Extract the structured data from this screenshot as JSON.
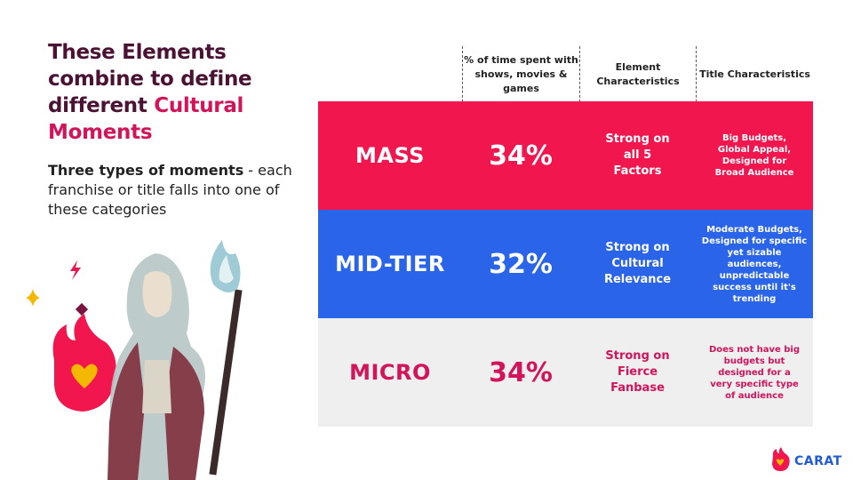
{
  "heading": {
    "line_main": "These Elements combine to define different ",
    "line_accent": "Cultural Moments"
  },
  "subheading": {
    "bold": "Three types of moments",
    "rest": " - each franchise or title falls into one of these categories"
  },
  "table": {
    "headers": [
      "% of time spent with shows, movies & games",
      "Element Characteristics",
      "Title Characteristics"
    ],
    "rows": [
      {
        "name": "MASS",
        "percent": "34%",
        "element": "Strong on all 5 Factors",
        "title": "Big Budgets, Global Appeal, Designed for Broad Audience",
        "color": "#f2164e"
      },
      {
        "name": "MID-TIER",
        "percent": "32%",
        "element": "Strong on Cultural Relevance",
        "title": "Moderate Budgets, Designed for specific yet sizable audiences, unpredictable success until it's trending",
        "color": "#2a64e8"
      },
      {
        "name": "MICRO",
        "percent": "34%",
        "element": "Strong on Fierce Fanbase",
        "title": "Does not have big budgets but designed for a very specific type of audience",
        "color": "#efefef"
      }
    ]
  },
  "brand": {
    "logo_text": "CARAT",
    "accent_color": "#d2145a",
    "logo_color": "#1f5bd8"
  },
  "icons": [
    "flame-heart-icon",
    "lightning-icon",
    "sparkle-icon",
    "diamond-icon",
    "game-character-illustration"
  ]
}
